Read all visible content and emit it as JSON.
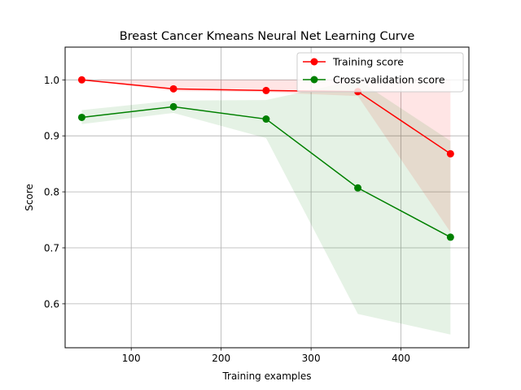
{
  "chart_data": {
    "type": "line",
    "title": "Breast Cancer Kmeans Neural Net Learning Curve",
    "xlabel": "Training examples",
    "ylabel": "Score",
    "xlim": [
      26.5,
      475.5
    ],
    "ylim": [
      0.5215,
      1.0585
    ],
    "xticks": [
      100,
      200,
      300,
      400
    ],
    "yticks": [
      0.6,
      0.7,
      0.8,
      0.9,
      1.0
    ],
    "xtick_labels": [
      "100",
      "200",
      "300",
      "400"
    ],
    "ytick_labels": [
      "0.6",
      "0.7",
      "0.8",
      "0.9",
      "1.0"
    ],
    "grid": true,
    "legend_position": "upper right",
    "x": [
      45,
      147,
      250,
      352,
      455
    ],
    "series": [
      {
        "name": "Training score",
        "color": "#ff0000",
        "values": [
          1.0,
          0.984,
          0.981,
          0.979,
          0.868
        ],
        "band_lower": [
          1.0,
          0.98,
          0.978,
          0.971,
          0.728
        ],
        "band_upper": [
          1.0,
          1.0,
          1.0,
          1.0,
          1.0
        ]
      },
      {
        "name": "Cross-validation score",
        "color": "#008000",
        "values": [
          0.933,
          0.952,
          0.93,
          0.807,
          0.719
        ],
        "band_lower": [
          0.921,
          0.941,
          0.896,
          0.582,
          0.545
        ],
        "band_upper": [
          0.946,
          0.963,
          0.964,
          1.0,
          0.891
        ]
      }
    ]
  }
}
